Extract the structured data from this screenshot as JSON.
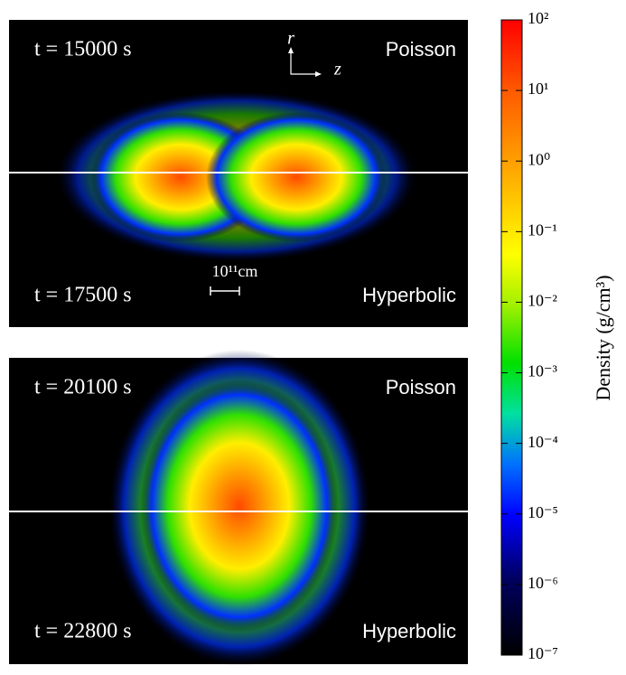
{
  "chart_data": {
    "type": "image",
    "panels": [
      {
        "top_time": "t = 15000 s",
        "top_method": "Poisson",
        "bottom_time": "t = 17500 s",
        "bottom_method": "Hyperbolic",
        "scale_label": "10¹¹cm",
        "axis_r": "r",
        "axis_z": "z"
      },
      {
        "top_time": "t = 20100 s",
        "top_method": "Poisson",
        "bottom_time": "t = 22800 s",
        "bottom_method": "Hyperbolic"
      }
    ],
    "colorbar": {
      "label": "Density (g/cm³)",
      "log": true,
      "lim": [
        1e-07,
        100
      ],
      "ticks": [
        {
          "value": 1e-07,
          "label": "10⁻⁷"
        },
        {
          "value": 1e-06,
          "label": "10⁻⁶"
        },
        {
          "value": 1e-05,
          "label": "10⁻⁵"
        },
        {
          "value": 0.0001,
          "label": "10⁻⁴"
        },
        {
          "value": 0.001,
          "label": "10⁻³"
        },
        {
          "value": 0.01,
          "label": "10⁻²"
        },
        {
          "value": 0.1,
          "label": "10⁻¹"
        },
        {
          "value": 1,
          "label": "10⁰"
        },
        {
          "value": 10,
          "label": "10¹"
        },
        {
          "value": 100,
          "label": "10²"
        }
      ]
    }
  }
}
